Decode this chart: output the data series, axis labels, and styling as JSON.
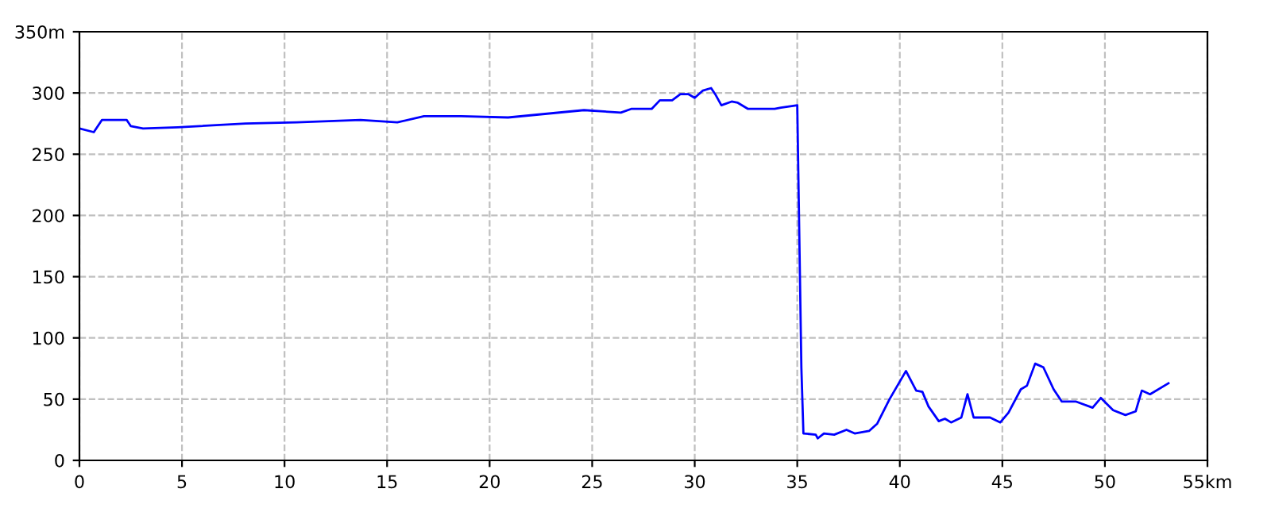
{
  "chart_data": {
    "type": "line",
    "x": [
      0,
      0.7,
      1.1,
      2.3,
      2.5,
      3.1,
      4.8,
      8.1,
      10.6,
      13.7,
      15.5,
      16.8,
      18.6,
      20.9,
      24.6,
      26.4,
      26.9,
      27.9,
      28.3,
      28.9,
      29.3,
      29.7,
      30.0,
      30.4,
      30.8,
      31.0,
      31.3,
      31.8,
      32.1,
      32.6,
      33.9,
      34.2,
      35.0,
      35.2,
      35.3,
      35.9,
      36.0,
      36.3,
      36.8,
      37.4,
      37.8,
      38.5,
      38.9,
      39.5,
      40.3,
      40.8,
      41.1,
      41.4,
      41.9,
      42.2,
      42.5,
      43.0,
      43.3,
      43.6,
      44.4,
      44.9,
      45.3,
      45.9,
      46.2,
      46.6,
      47.0,
      47.5,
      47.9,
      48.6,
      49.4,
      49.8,
      50.4,
      51.0,
      51.5,
      51.8,
      52.2,
      53.1
    ],
    "series": [
      {
        "color": "#0000ff",
        "values": [
          271,
          268,
          278,
          278,
          273,
          271,
          272,
          275,
          276,
          278,
          276,
          281,
          281,
          280,
          286,
          284,
          287,
          287,
          294,
          294,
          299,
          299,
          296,
          302,
          304,
          299,
          290,
          293,
          292,
          287,
          287,
          288,
          290,
          76,
          22,
          21,
          18,
          22,
          21,
          25,
          22,
          24,
          30,
          50,
          73,
          57,
          56,
          44,
          32,
          34,
          31,
          35,
          54,
          35,
          35,
          31,
          39,
          58,
          61,
          79,
          76,
          58,
          48,
          48,
          43,
          51,
          41,
          37,
          40,
          57,
          54,
          63
        ]
      }
    ],
    "xlim": [
      0,
      55
    ],
    "ylim": [
      0,
      350
    ],
    "xticks": [
      0,
      5,
      10,
      15,
      20,
      25,
      30,
      35,
      40,
      45,
      50,
      {
        "value": 55,
        "label": "55km"
      }
    ],
    "yticks": [
      0,
      50,
      100,
      150,
      200,
      250,
      300,
      {
        "value": 350,
        "label": "350m"
      }
    ],
    "grid": true,
    "line_style": "solid",
    "marker": "none"
  }
}
